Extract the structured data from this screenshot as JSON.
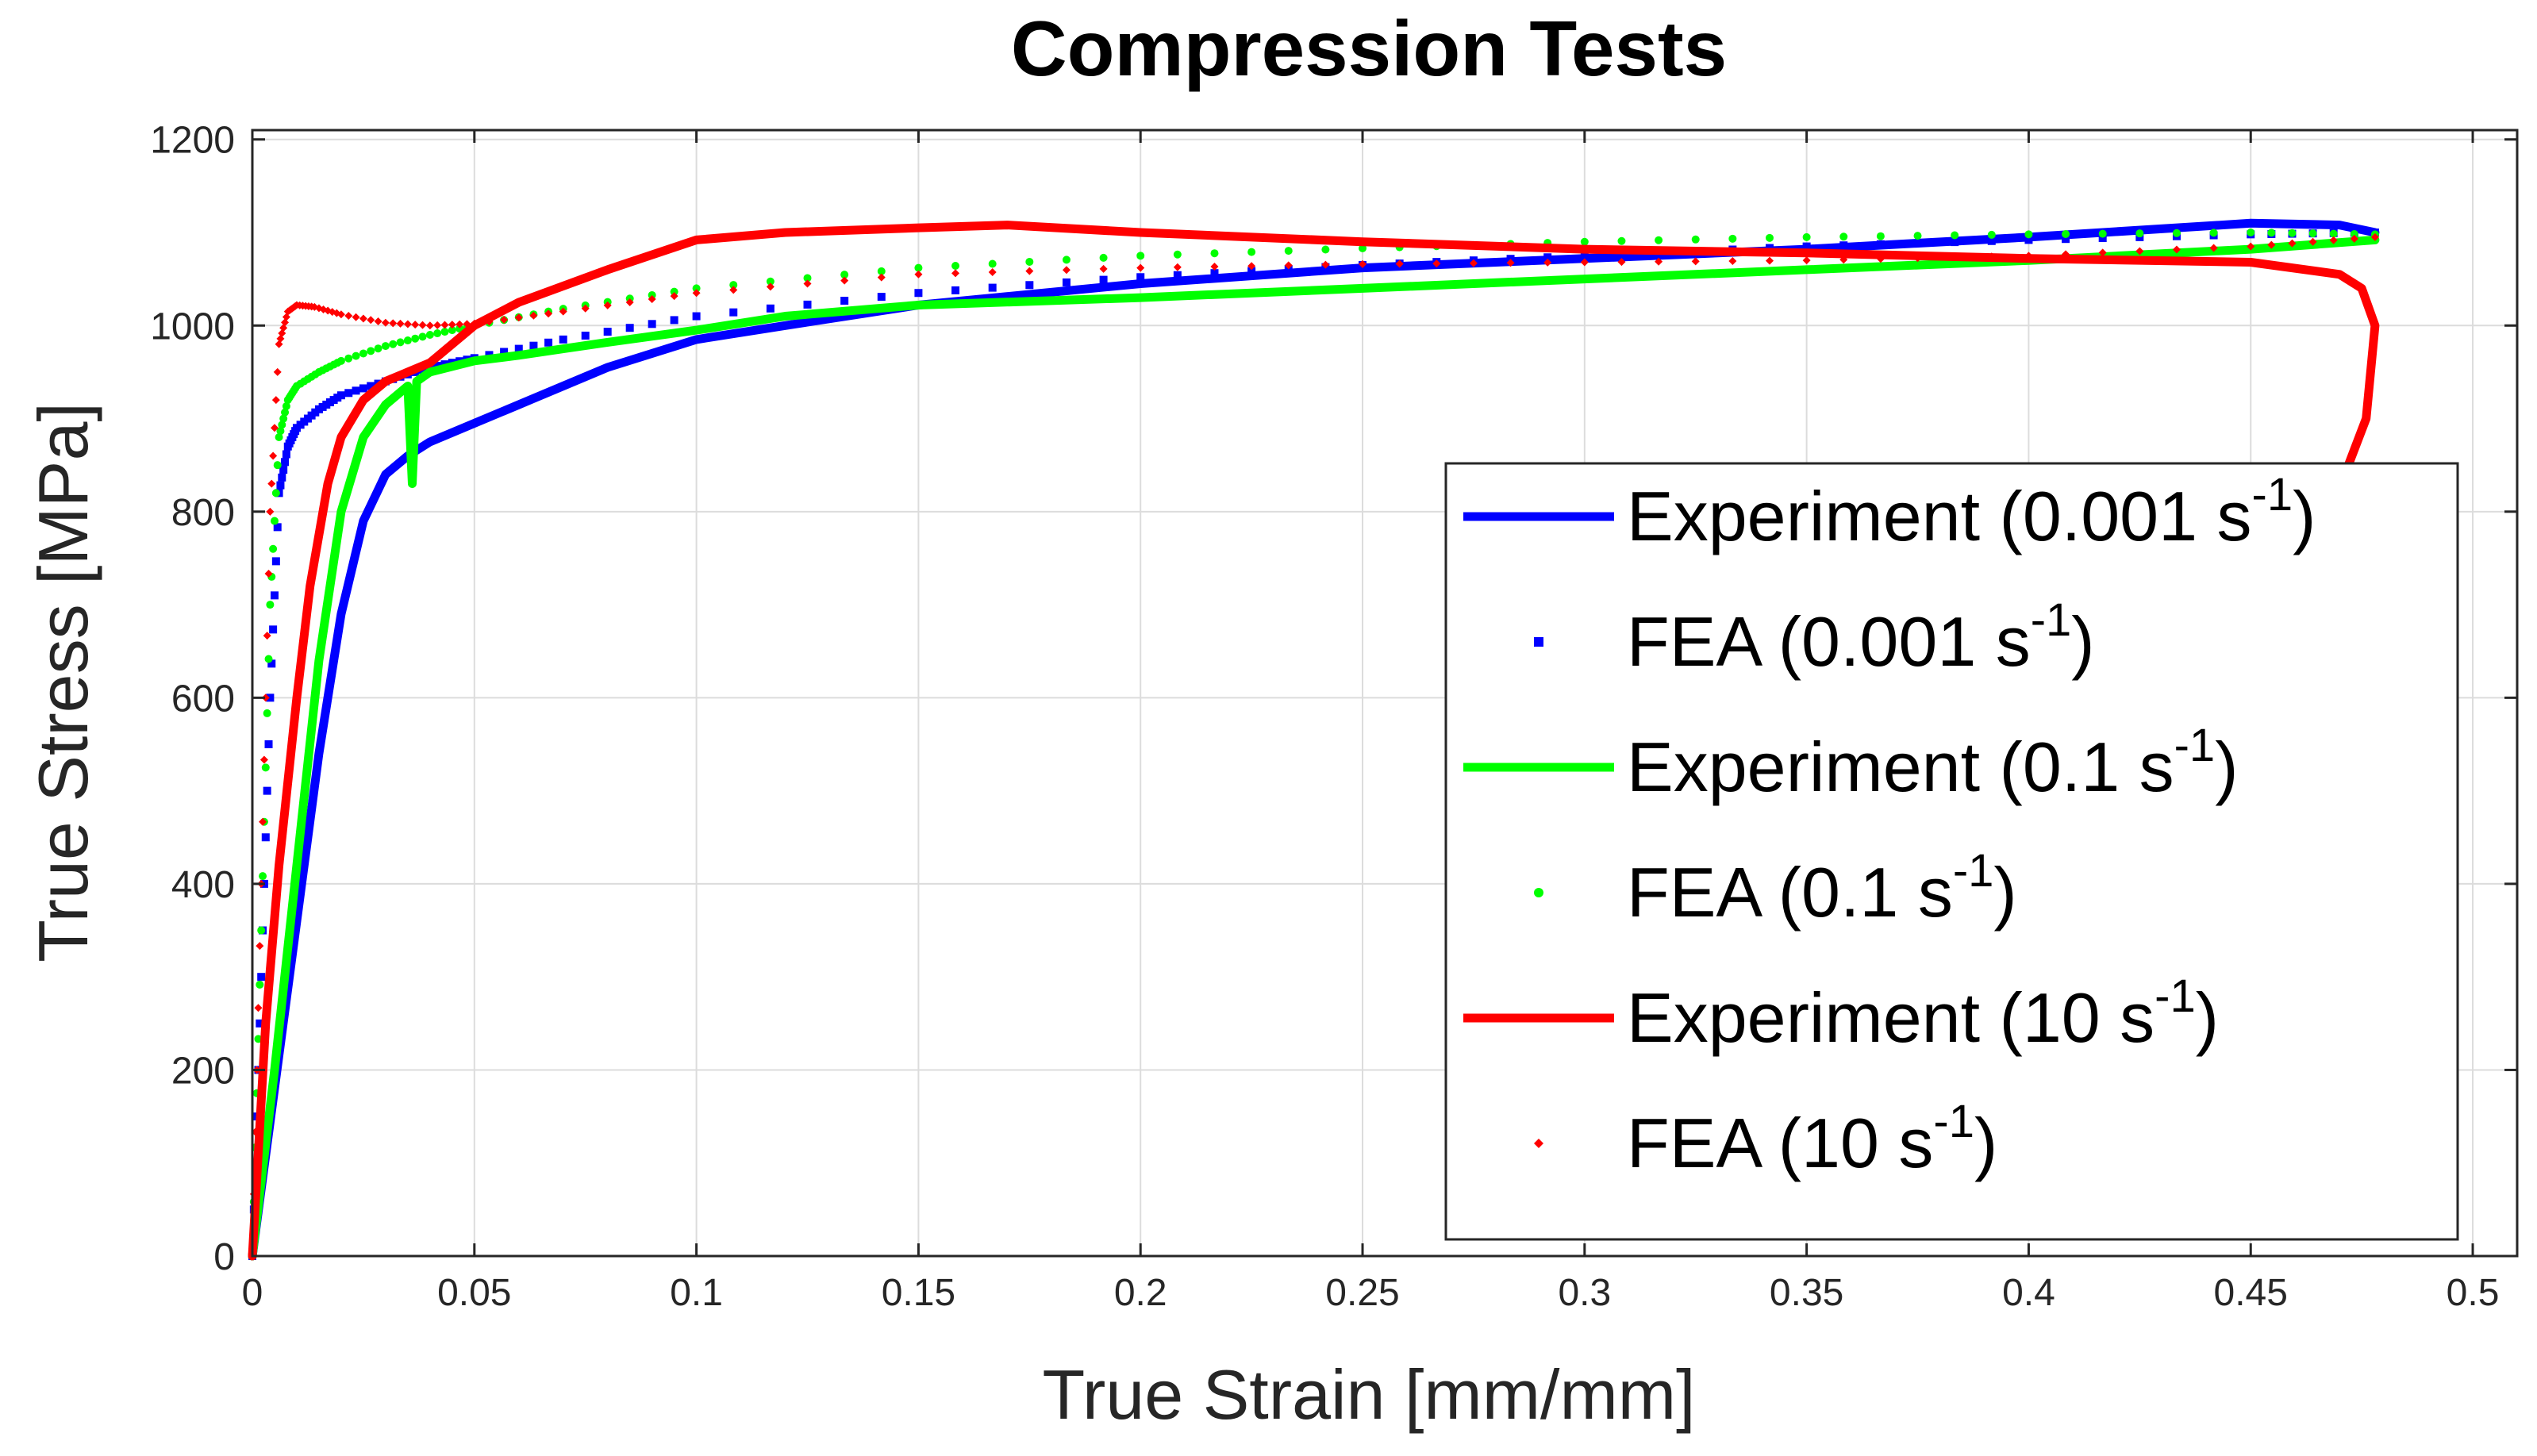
{
  "chart_data": {
    "type": "line",
    "title": "Compression Tests",
    "xlabel": "True Strain [mm/mm]",
    "ylabel": "True Stress [MPa]",
    "xlim": [
      0,
      0.51
    ],
    "ylim": [
      0,
      1210
    ],
    "grid": true,
    "x_ticks": [
      0,
      0.05,
      0.1,
      0.15,
      0.2,
      0.25,
      0.3,
      0.35,
      0.4,
      0.45,
      0.5
    ],
    "x_tick_labels": [
      "0",
      "0.05",
      "0.1",
      "0.15",
      "0.2",
      "0.25",
      "0.3",
      "0.35",
      "0.4",
      "0.45",
      "0.5"
    ],
    "y_ticks": [
      0,
      200,
      400,
      600,
      800,
      1000,
      1200
    ],
    "y_tick_labels": [
      "0",
      "200",
      "400",
      "600",
      "800",
      "1000",
      "1200"
    ],
    "legend_position": "lower-right",
    "series": [
      {
        "name": "Experiment (0.001 s-1)",
        "label_main": "Experiment (0.001 s",
        "label_sup": "-1",
        "label_end": ")",
        "style": "line",
        "color": "#0000ff",
        "x": [
          0,
          0.005,
          0.01,
          0.015,
          0.02,
          0.025,
          0.03,
          0.035,
          0.04,
          0.05,
          0.06,
          0.07,
          0.08,
          0.1,
          0.12,
          0.15,
          0.2,
          0.25,
          0.3,
          0.35,
          0.4,
          0.45,
          0.47,
          0.478
        ],
        "y": [
          0,
          180,
          360,
          540,
          690,
          790,
          840,
          860,
          875,
          895,
          915,
          935,
          955,
          985,
          1000,
          1022,
          1045,
          1062,
          1072,
          1082,
          1095,
          1110,
          1108,
          1100
        ]
      },
      {
        "name": "FEA (0.001 s-1)",
        "label_main": "FEA (0.001 s",
        "label_sup": "-1",
        "label_end": ")",
        "style": "points",
        "marker": "square",
        "color": "#0000ff",
        "x": [
          0,
          0.002,
          0.004,
          0.006,
          0.008,
          0.01,
          0.015,
          0.02,
          0.03,
          0.04,
          0.05,
          0.07,
          0.1,
          0.15,
          0.2,
          0.25,
          0.3,
          0.35,
          0.4,
          0.45,
          0.478
        ],
        "y": [
          0,
          300,
          600,
          820,
          870,
          890,
          910,
          925,
          940,
          955,
          965,
          985,
          1010,
          1035,
          1052,
          1065,
          1075,
          1085,
          1092,
          1098,
          1100
        ]
      },
      {
        "name": "Experiment (0.1 s-1)",
        "label_main": "Experiment (0.1 s",
        "label_sup": "-1",
        "label_end": ")",
        "style": "line",
        "color": "#00ff00",
        "x": [
          0,
          0.005,
          0.01,
          0.015,
          0.02,
          0.025,
          0.03,
          0.035,
          0.036,
          0.037,
          0.04,
          0.05,
          0.06,
          0.07,
          0.08,
          0.1,
          0.12,
          0.15,
          0.2,
          0.25,
          0.3,
          0.35,
          0.4,
          0.45,
          0.478
        ],
        "y": [
          0,
          200,
          420,
          640,
          800,
          880,
          915,
          935,
          830,
          940,
          950,
          962,
          968,
          975,
          982,
          995,
          1010,
          1022,
          1030,
          1040,
          1050,
          1060,
          1070,
          1082,
          1092
        ]
      },
      {
        "name": "FEA (0.1 s-1)",
        "label_main": "FEA (0.1 s",
        "label_sup": "-1",
        "label_end": ")",
        "style": "points",
        "marker": "circle",
        "color": "#00ff00",
        "x": [
          0,
          0.002,
          0.004,
          0.006,
          0.008,
          0.01,
          0.015,
          0.02,
          0.03,
          0.04,
          0.05,
          0.07,
          0.1,
          0.15,
          0.2,
          0.25,
          0.3,
          0.35,
          0.4,
          0.45,
          0.478
        ],
        "y": [
          0,
          350,
          700,
          880,
          920,
          935,
          950,
          962,
          978,
          990,
          1000,
          1018,
          1040,
          1062,
          1075,
          1083,
          1090,
          1095,
          1098,
          1100,
          1098
        ]
      },
      {
        "name": "Experiment (10 s-1)",
        "label_main": "Experiment (10 s",
        "label_sup": "-1",
        "label_end": ")",
        "style": "line",
        "color": "#ff0000",
        "x": [
          0,
          0.003,
          0.006,
          0.01,
          0.013,
          0.017,
          0.02,
          0.025,
          0.03,
          0.04,
          0.05,
          0.06,
          0.08,
          0.1,
          0.12,
          0.15,
          0.17,
          0.2,
          0.25,
          0.3,
          0.35,
          0.4,
          0.45,
          0.47,
          0.475,
          0.478,
          0.476,
          0.472
        ],
        "y": [
          0,
          250,
          420,
          600,
          720,
          830,
          880,
          920,
          940,
          960,
          1000,
          1025,
          1060,
          1092,
          1100,
          1105,
          1108,
          1100,
          1090,
          1082,
          1078,
          1072,
          1068,
          1055,
          1040,
          1000,
          900,
          850
        ]
      },
      {
        "name": "FEA (10 s-1)",
        "label_main": "FEA (10 s",
        "label_sup": "-1",
        "label_end": ")",
        "style": "points",
        "marker": "diamond",
        "color": "#ff0000",
        "x": [
          0,
          0.002,
          0.004,
          0.006,
          0.008,
          0.01,
          0.014,
          0.02,
          0.03,
          0.04,
          0.05,
          0.07,
          0.1,
          0.15,
          0.2,
          0.25,
          0.3,
          0.35,
          0.4,
          0.45,
          0.478
        ],
        "y": [
          0,
          400,
          800,
          980,
          1015,
          1022,
          1020,
          1012,
          1003,
          1000,
          1002,
          1015,
          1035,
          1055,
          1062,
          1066,
          1068,
          1070,
          1075,
          1085,
          1095
        ]
      }
    ]
  }
}
